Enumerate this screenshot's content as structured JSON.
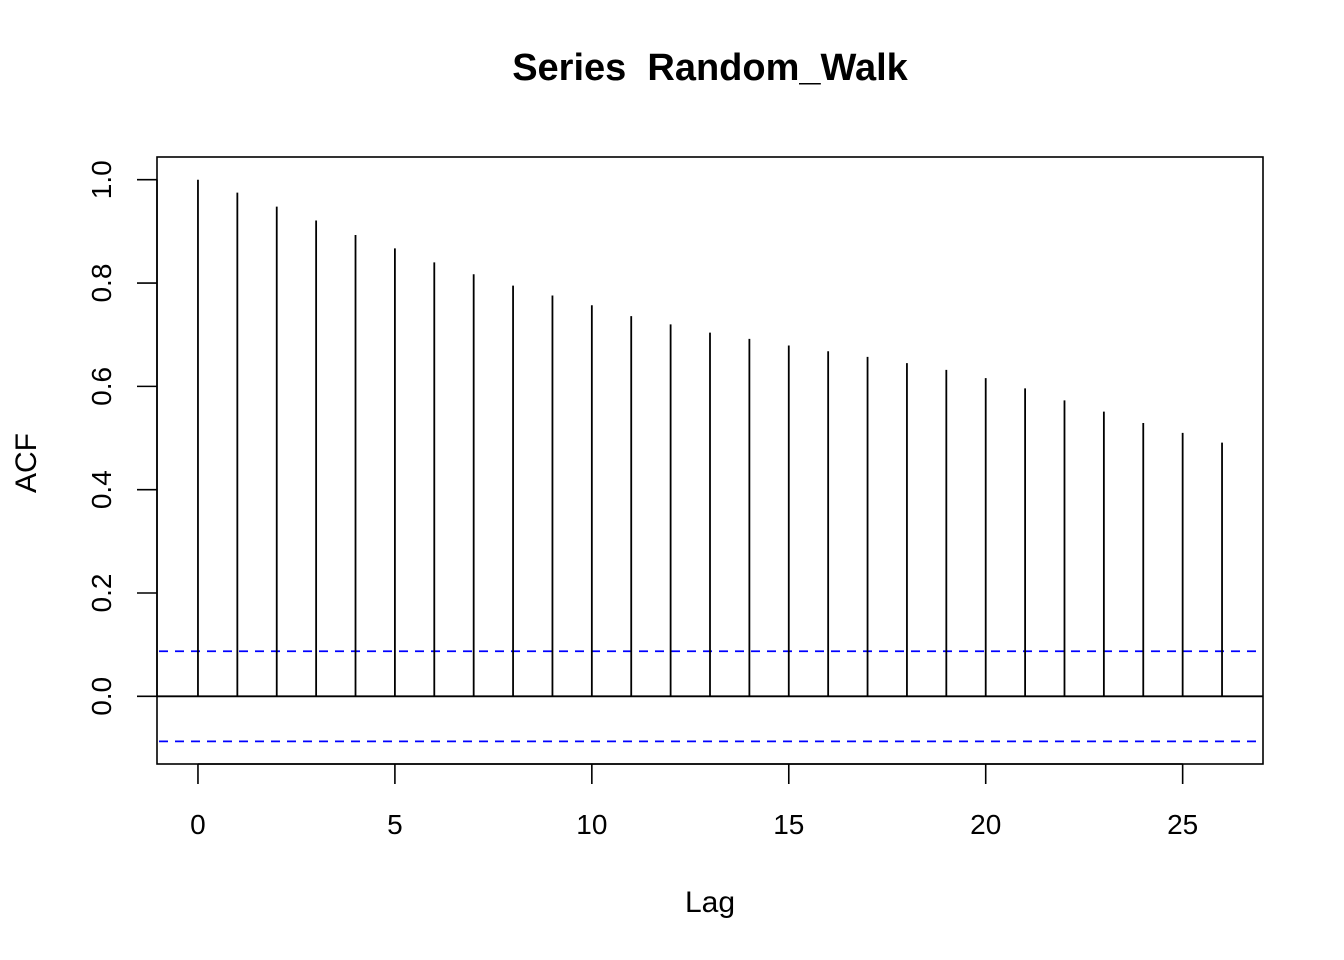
{
  "chart_data": {
    "type": "bar",
    "title": "Series  Random_Walk",
    "xlabel": "Lag",
    "ylabel": "ACF",
    "x": [
      0,
      1,
      2,
      3,
      4,
      5,
      6,
      7,
      8,
      9,
      10,
      11,
      12,
      13,
      14,
      15,
      16,
      17,
      18,
      19,
      20,
      21,
      22,
      23,
      24,
      25,
      26
    ],
    "values": [
      1.0,
      0.975,
      0.948,
      0.921,
      0.893,
      0.867,
      0.84,
      0.817,
      0.795,
      0.776,
      0.757,
      0.736,
      0.72,
      0.704,
      0.692,
      0.679,
      0.668,
      0.657,
      0.645,
      0.632,
      0.616,
      0.596,
      0.573,
      0.551,
      0.529,
      0.51,
      0.491
    ],
    "confidence_bounds": [
      0.0872,
      -0.0872
    ],
    "xlim": [
      -1.04,
      27.04
    ],
    "ylim": [
      -0.131,
      1.044
    ],
    "x_ticks": [
      "0",
      "5",
      "10",
      "15",
      "20",
      "25"
    ],
    "y_ticks": [
      "0.0",
      "0.2",
      "0.4",
      "0.6",
      "0.8",
      "1.0"
    ],
    "grid": false,
    "colors": {
      "bars": "#000000",
      "confidence_lines": "#0000ff",
      "zero_line": "#000000"
    }
  }
}
